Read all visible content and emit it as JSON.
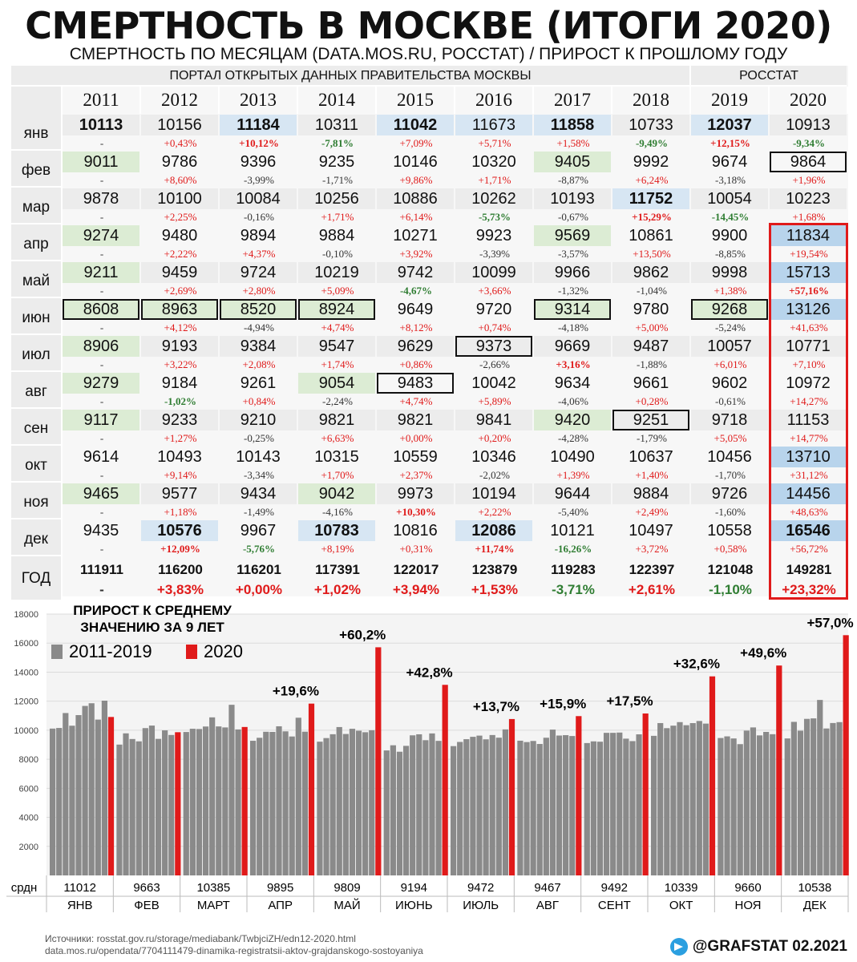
{
  "title": "СМЕРТНОСТЬ В МОСКВЕ (ИТОГИ 2020)",
  "subtitle": "СМЕРТНОСТЬ ПО МЕСЯЦАМ (DATA.MOS.RU,  РОССТАТ) / ПРИРОСТ К ПРОШЛОМУ ГОДУ",
  "table": {
    "source_mos": "ПОРТАЛ ОТКРЫТЫХ ДАННЫХ ПРАВИТЕЛЬСТВА МОСКВЫ",
    "source_rosstat": "РОССТАТ",
    "years": [
      "2011",
      "2012",
      "2013",
      "2014",
      "2015",
      "2016",
      "2017",
      "2018",
      "2019",
      "2020"
    ],
    "rows": [
      {
        "month": "янв",
        "values": [
          "10113",
          "10156",
          "11184",
          "10311",
          "11042",
          "11673",
          "11858",
          "10733",
          "12037",
          "10913"
        ],
        "pct": [
          "-",
          "+0,43%",
          "+10,12%",
          "-7,81%",
          "+7,09%",
          "+5,71%",
          "+1,58%",
          "-9,49%",
          "+12,15%",
          "-9,34%"
        ]
      },
      {
        "month": "фев",
        "values": [
          "9011",
          "9786",
          "9396",
          "9235",
          "10146",
          "10320",
          "9405",
          "9992",
          "9674",
          "9864"
        ],
        "pct": [
          "-",
          "+8,60%",
          "-3,99%",
          "-1,71%",
          "+9,86%",
          "+1,71%",
          "-8,87%",
          "+6,24%",
          "-3,18%",
          "+1,96%"
        ]
      },
      {
        "month": "мар",
        "values": [
          "9878",
          "10100",
          "10084",
          "10256",
          "10886",
          "10262",
          "10193",
          "11752",
          "10054",
          "10223"
        ],
        "pct": [
          "-",
          "+2,25%",
          "-0,16%",
          "+1,71%",
          "+6,14%",
          "-5,73%",
          "-0,67%",
          "+15,29%",
          "-14,45%",
          "+1,68%"
        ]
      },
      {
        "month": "апр",
        "values": [
          "9274",
          "9480",
          "9894",
          "9884",
          "10271",
          "9923",
          "9569",
          "10861",
          "9900",
          "11834"
        ],
        "pct": [
          "-",
          "+2,22%",
          "+4,37%",
          "-0,10%",
          "+3,92%",
          "-3,39%",
          "-3,57%",
          "+13,50%",
          "-8,85%",
          "+19,54%"
        ]
      },
      {
        "month": "май",
        "values": [
          "9211",
          "9459",
          "9724",
          "10219",
          "9742",
          "10099",
          "9966",
          "9862",
          "9998",
          "15713"
        ],
        "pct": [
          "-",
          "+2,69%",
          "+2,80%",
          "+5,09%",
          "-4,67%",
          "+3,66%",
          "-1,32%",
          "-1,04%",
          "+1,38%",
          "+57,16%"
        ]
      },
      {
        "month": "июн",
        "values": [
          "8608",
          "8963",
          "8520",
          "8924",
          "9649",
          "9720",
          "9314",
          "9780",
          "9268",
          "13126"
        ],
        "pct": [
          "-",
          "+4,12%",
          "-4,94%",
          "+4,74%",
          "+8,12%",
          "+0,74%",
          "-4,18%",
          "+5,00%",
          "-5,24%",
          "+41,63%"
        ]
      },
      {
        "month": "июл",
        "values": [
          "8906",
          "9193",
          "9384",
          "9547",
          "9629",
          "9373",
          "9669",
          "9487",
          "10057",
          "10771"
        ],
        "pct": [
          "-",
          "+3,22%",
          "+2,08%",
          "+1,74%",
          "+0,86%",
          "-2,66%",
          "+3,16%",
          "-1,88%",
          "+6,01%",
          "+7,10%"
        ]
      },
      {
        "month": "авг",
        "values": [
          "9279",
          "9184",
          "9261",
          "9054",
          "9483",
          "10042",
          "9634",
          "9661",
          "9602",
          "10972"
        ],
        "pct": [
          "-",
          "-1,02%",
          "+0,84%",
          "-2,24%",
          "+4,74%",
          "+5,89%",
          "-4,06%",
          "+0,28%",
          "-0,61%",
          "+14,27%"
        ]
      },
      {
        "month": "сен",
        "values": [
          "9117",
          "9233",
          "9210",
          "9821",
          "9821",
          "9841",
          "9420",
          "9251",
          "9718",
          "11153"
        ],
        "pct": [
          "-",
          "+1,27%",
          "-0,25%",
          "+6,63%",
          "+0,00%",
          "+0,20%",
          "-4,28%",
          "-1,79%",
          "+5,05%",
          "+14,77%"
        ]
      },
      {
        "month": "окт",
        "values": [
          "9614",
          "10493",
          "10143",
          "10315",
          "10559",
          "10346",
          "10490",
          "10637",
          "10456",
          "13710"
        ],
        "pct": [
          "-",
          "+9,14%",
          "-3,34%",
          "+1,70%",
          "+2,37%",
          "-2,02%",
          "+1,39%",
          "+1,40%",
          "-1,70%",
          "+31,12%"
        ]
      },
      {
        "month": "ноя",
        "values": [
          "9465",
          "9577",
          "9434",
          "9042",
          "9973",
          "10194",
          "9644",
          "9884",
          "9726",
          "14456"
        ],
        "pct": [
          "-",
          "+1,18%",
          "-1,49%",
          "-4,16%",
          "+10,30%",
          "+2,22%",
          "-5,40%",
          "+2,49%",
          "-1,60%",
          "+48,63%"
        ]
      },
      {
        "month": "дек",
        "values": [
          "9435",
          "10576",
          "9967",
          "10783",
          "10816",
          "12086",
          "10121",
          "10497",
          "10558",
          "16546"
        ],
        "pct": [
          "-",
          "+12,09%",
          "-5,76%",
          "+8,19%",
          "+0,31%",
          "+11,74%",
          "-16,26%",
          "+3,72%",
          "+0,58%",
          "+56,72%"
        ]
      }
    ],
    "year_row": {
      "label": "ГОД",
      "values": [
        "111911",
        "116200",
        "116201",
        "117391",
        "122017",
        "123879",
        "119283",
        "122397",
        "121048",
        "149281"
      ],
      "pct": [
        "-",
        "+3,83%",
        "+0,00%",
        "+1,02%",
        "+3,94%",
        "+1,53%",
        "-3,71%",
        "+2,61%",
        "-1,10%",
        "+23,32%"
      ]
    }
  },
  "chart_data": {
    "type": "bar",
    "title": "ПРИРОСТ К СРЕДНЕМУ ЗНАЧЕНИЮ ЗА 9 ЛЕТ",
    "legend": [
      {
        "name": "2011-2019",
        "color": "#8a8a8a"
      },
      {
        "name": "2020",
        "color": "#e01a1a"
      }
    ],
    "ylim": [
      0,
      18000
    ],
    "yticks": [
      2000,
      4000,
      6000,
      8000,
      10000,
      12000,
      14000,
      16000,
      18000
    ],
    "categories": [
      "ЯНВ",
      "ФЕВ",
      "МАРТ",
      "АПР",
      "МАЙ",
      "ИЮНЬ",
      "ИЮЛЬ",
      "АВГ",
      "СЕНТ",
      "ОКТ",
      "НОЯ",
      "ДЕК"
    ],
    "avg_label": "срдн",
    "averages": [
      "11012",
      "9663",
      "10385",
      "9895",
      "9809",
      "9194",
      "9472",
      "9467",
      "9492",
      "10339",
      "9660",
      "10538"
    ],
    "growth_labels": [
      "",
      "",
      "",
      "+19,6%",
      "+60,2%",
      "+42,8%",
      "+13,7%",
      "+15,9%",
      "+17,5%",
      "+32,6%",
      "+49,6%",
      "+57,0%"
    ],
    "series": [
      {
        "name": "2011-2019",
        "values": [
          [
            10113,
            10156,
            11184,
            10311,
            11042,
            11673,
            11858,
            10733,
            12037
          ],
          [
            9011,
            9786,
            9396,
            9235,
            10146,
            10320,
            9405,
            9992,
            9674
          ],
          [
            9878,
            10100,
            10084,
            10256,
            10886,
            10262,
            10193,
            11752,
            10054
          ],
          [
            9274,
            9480,
            9894,
            9884,
            10271,
            9923,
            9569,
            10861,
            9900
          ],
          [
            9211,
            9459,
            9724,
            10219,
            9742,
            10099,
            9966,
            9862,
            9998
          ],
          [
            8608,
            8963,
            8520,
            8924,
            9649,
            9720,
            9314,
            9780,
            9268
          ],
          [
            8906,
            9193,
            9384,
            9547,
            9629,
            9373,
            9669,
            9487,
            10057
          ],
          [
            9279,
            9184,
            9261,
            9054,
            9483,
            10042,
            9634,
            9661,
            9602
          ],
          [
            9117,
            9233,
            9210,
            9821,
            9821,
            9841,
            9420,
            9251,
            9718
          ],
          [
            9614,
            10493,
            10143,
            10315,
            10559,
            10346,
            10490,
            10637,
            10456
          ],
          [
            9465,
            9577,
            9434,
            9042,
            9973,
            10194,
            9644,
            9884,
            9726
          ],
          [
            9435,
            10576,
            9967,
            10783,
            10816,
            12086,
            10121,
            10497,
            10558
          ]
        ]
      },
      {
        "name": "2020",
        "values": [
          10913,
          9864,
          10223,
          11834,
          15713,
          13126,
          10771,
          10972,
          11153,
          13710,
          14456,
          16546
        ]
      }
    ]
  },
  "footer": {
    "sources_label": "Источники: rosstat.gov.ru/storage/mediabank/TwbjciZH/edn12-2020.html",
    "sources_line2": "data.mos.ru/opendata/7704111479-dinamika-registratsii-aktov-grajdanskogo-sostoyaniya",
    "brand": "@GRAFSTAT 02.2021"
  }
}
